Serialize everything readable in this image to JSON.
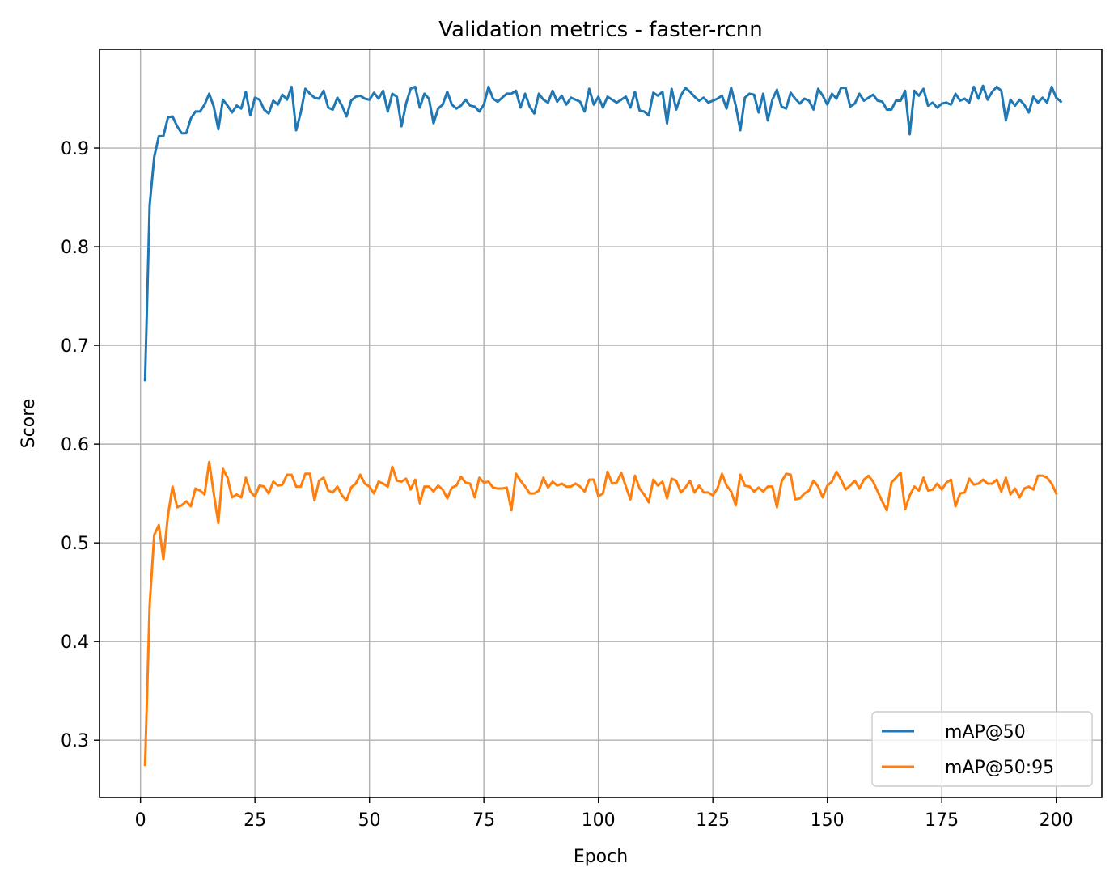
{
  "chart_data": {
    "type": "line",
    "title": "Validation metrics - faster-rcnn",
    "xlabel": "Epoch",
    "ylabel": "Score",
    "xlim": [
      -8.95,
      209.95
    ],
    "ylim": [
      0.242,
      1.0
    ],
    "xticks": [
      0,
      25,
      50,
      75,
      100,
      125,
      150,
      175,
      200
    ],
    "yticks": [
      0.3,
      0.4,
      0.5,
      0.6,
      0.7,
      0.8,
      0.9
    ],
    "ytick_labels": [
      "0.3",
      "0.4",
      "0.5",
      "0.6",
      "0.7",
      "0.8",
      "0.9"
    ],
    "grid": true,
    "legend_position": "lower right",
    "series": [
      {
        "name": "mAP@50",
        "color": "#1f77b4",
        "values": [
          0.665,
          0.842,
          0.891,
          0.912,
          0.912,
          0.931,
          0.932,
          0.922,
          0.915,
          0.915,
          0.93,
          0.937,
          0.937,
          0.944,
          0.955,
          0.942,
          0.919,
          0.949,
          0.943,
          0.936,
          0.943,
          0.94,
          0.957,
          0.933,
          0.951,
          0.949,
          0.939,
          0.935,
          0.948,
          0.944,
          0.954,
          0.949,
          0.962,
          0.918,
          0.936,
          0.96,
          0.955,
          0.951,
          0.95,
          0.958,
          0.941,
          0.939,
          0.951,
          0.943,
          0.932,
          0.948,
          0.952,
          0.953,
          0.95,
          0.949,
          0.956,
          0.95,
          0.958,
          0.937,
          0.955,
          0.952,
          0.922,
          0.945,
          0.96,
          0.962,
          0.941,
          0.955,
          0.95,
          0.925,
          0.94,
          0.944,
          0.957,
          0.944,
          0.94,
          0.943,
          0.949,
          0.943,
          0.942,
          0.937,
          0.944,
          0.962,
          0.95,
          0.947,
          0.951,
          0.955,
          0.955,
          0.958,
          0.941,
          0.955,
          0.942,
          0.935,
          0.955,
          0.949,
          0.946,
          0.958,
          0.947,
          0.953,
          0.944,
          0.951,
          0.949,
          0.947,
          0.937,
          0.96,
          0.944,
          0.952,
          0.941,
          0.952,
          0.949,
          0.946,
          0.949,
          0.952,
          0.941,
          0.957,
          0.938,
          0.937,
          0.933,
          0.956,
          0.953,
          0.957,
          0.925,
          0.96,
          0.939,
          0.953,
          0.961,
          0.957,
          0.952,
          0.948,
          0.951,
          0.946,
          0.948,
          0.95,
          0.953,
          0.94,
          0.961,
          0.943,
          0.918,
          0.951,
          0.955,
          0.954,
          0.936,
          0.955,
          0.928,
          0.949,
          0.959,
          0.942,
          0.94,
          0.956,
          0.95,
          0.945,
          0.95,
          0.948,
          0.939,
          0.96,
          0.953,
          0.944,
          0.955,
          0.95,
          0.961,
          0.961,
          0.942,
          0.945,
          0.955,
          0.948,
          0.951,
          0.954,
          0.948,
          0.947,
          0.939,
          0.939,
          0.948,
          0.948,
          0.958,
          0.914,
          0.958,
          0.953,
          0.96,
          0.943,
          0.946,
          0.941,
          0.945,
          0.946,
          0.944,
          0.955,
          0.948,
          0.95,
          0.946,
          0.962,
          0.95,
          0.963,
          0.949,
          0.957,
          0.962,
          0.958,
          0.928,
          0.949,
          0.943,
          0.949,
          0.944,
          0.936,
          0.952,
          0.946,
          0.951,
          0.946,
          0.962,
          0.951,
          0.947
        ]
      },
      {
        "name": "mAP@50:95",
        "color": "#ff7f0e",
        "values": [
          0.275,
          0.437,
          0.508,
          0.518,
          0.483,
          0.528,
          0.557,
          0.536,
          0.538,
          0.542,
          0.537,
          0.555,
          0.553,
          0.549,
          0.582,
          0.55,
          0.52,
          0.575,
          0.566,
          0.546,
          0.549,
          0.546,
          0.566,
          0.552,
          0.547,
          0.558,
          0.557,
          0.55,
          0.562,
          0.558,
          0.559,
          0.569,
          0.569,
          0.557,
          0.557,
          0.57,
          0.57,
          0.543,
          0.563,
          0.566,
          0.553,
          0.551,
          0.557,
          0.548,
          0.543,
          0.556,
          0.56,
          0.569,
          0.56,
          0.557,
          0.55,
          0.562,
          0.56,
          0.557,
          0.577,
          0.563,
          0.562,
          0.565,
          0.554,
          0.564,
          0.54,
          0.557,
          0.557,
          0.552,
          0.558,
          0.554,
          0.545,
          0.556,
          0.558,
          0.567,
          0.561,
          0.56,
          0.546,
          0.566,
          0.561,
          0.562,
          0.556,
          0.555,
          0.555,
          0.556,
          0.533,
          0.57,
          0.563,
          0.557,
          0.55,
          0.55,
          0.553,
          0.566,
          0.556,
          0.562,
          0.558,
          0.56,
          0.557,
          0.557,
          0.56,
          0.557,
          0.552,
          0.564,
          0.564,
          0.547,
          0.55,
          0.572,
          0.56,
          0.561,
          0.571,
          0.557,
          0.544,
          0.568,
          0.555,
          0.549,
          0.541,
          0.564,
          0.558,
          0.562,
          0.545,
          0.565,
          0.563,
          0.551,
          0.556,
          0.563,
          0.551,
          0.558,
          0.551,
          0.551,
          0.548,
          0.555,
          0.57,
          0.558,
          0.552,
          0.538,
          0.569,
          0.558,
          0.557,
          0.552,
          0.556,
          0.552,
          0.557,
          0.557,
          0.536,
          0.562,
          0.57,
          0.569,
          0.544,
          0.545,
          0.55,
          0.553,
          0.563,
          0.557,
          0.546,
          0.558,
          0.562,
          0.572,
          0.564,
          0.554,
          0.558,
          0.563,
          0.555,
          0.564,
          0.568,
          0.562,
          0.552,
          0.542,
          0.533,
          0.561,
          0.566,
          0.571,
          0.534,
          0.548,
          0.557,
          0.553,
          0.566,
          0.553,
          0.554,
          0.56,
          0.554,
          0.561,
          0.564,
          0.537,
          0.55,
          0.551,
          0.565,
          0.559,
          0.56,
          0.564,
          0.56,
          0.56,
          0.564,
          0.552,
          0.566,
          0.549,
          0.555,
          0.546,
          0.555,
          0.557,
          0.554,
          0.568,
          0.568,
          0.566,
          0.56,
          0.55
        ]
      }
    ]
  }
}
